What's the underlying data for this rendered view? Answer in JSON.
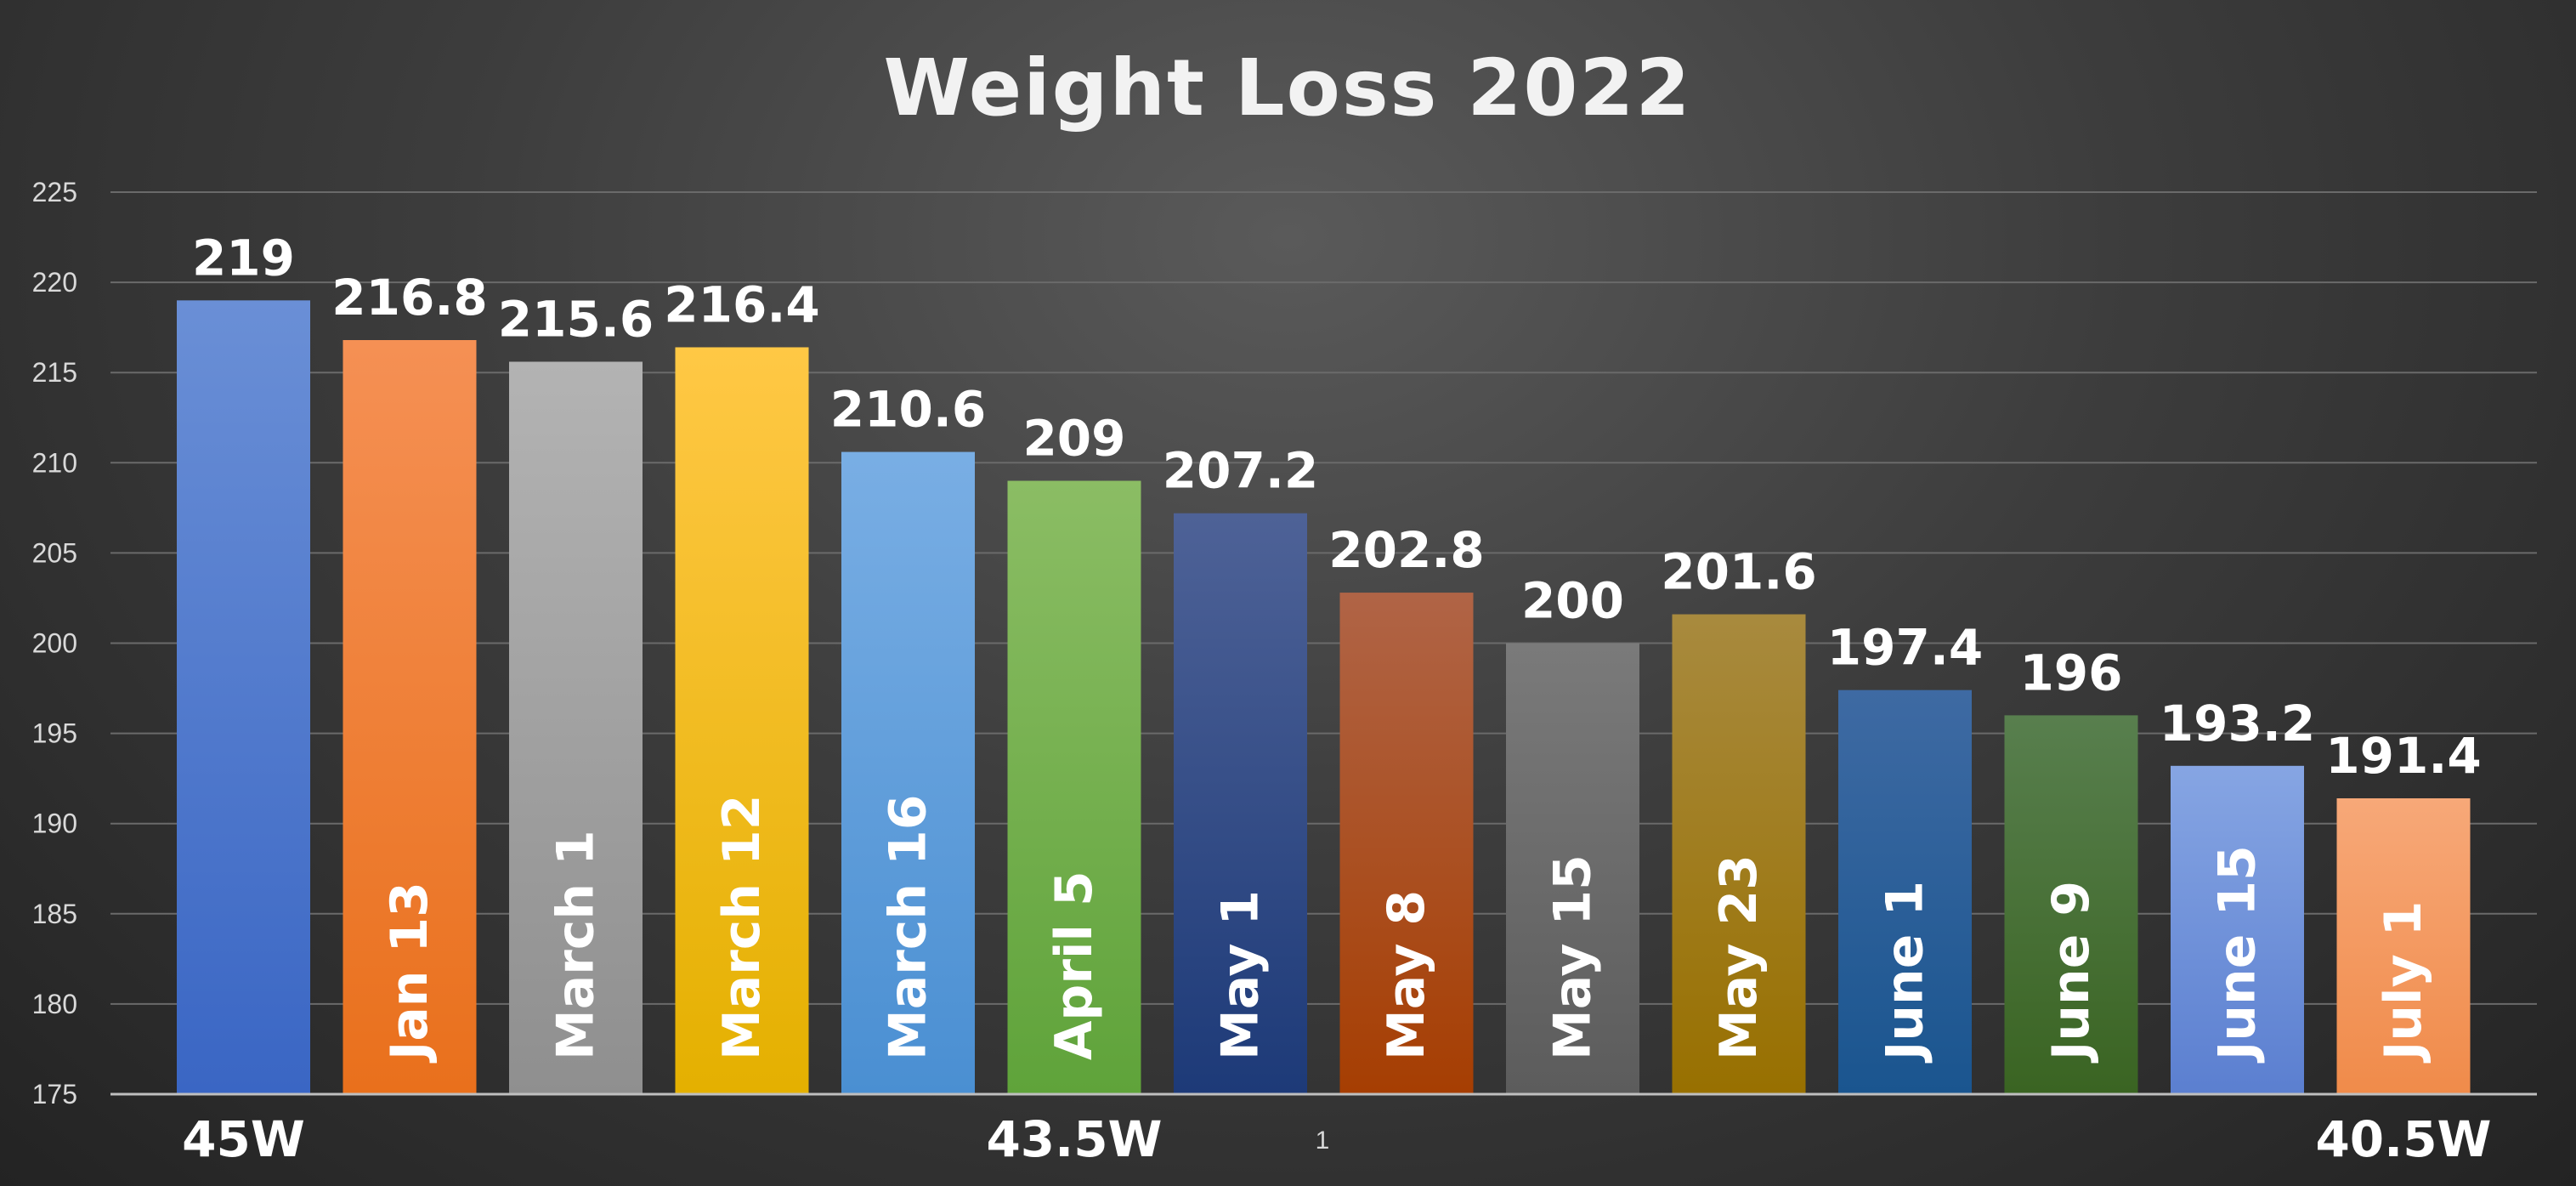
{
  "chart_data": {
    "type": "bar",
    "title": "Weight Loss 2022",
    "xlabel": "",
    "ylabel": "",
    "ylim": [
      175,
      225
    ],
    "yticks": [
      175,
      180,
      185,
      190,
      195,
      200,
      205,
      210,
      215,
      220,
      225
    ],
    "grid": true,
    "legend": "none",
    "categories": [
      "",
      "Jan 13",
      "March 1",
      "March 12",
      "March 16",
      "April 5",
      "May 1",
      "May 8",
      "May 15",
      "May 23",
      "June 1",
      "June 9",
      "June 15",
      "July 1"
    ],
    "values": [
      219,
      216.8,
      215.6,
      216.4,
      210.6,
      209,
      207.2,
      202.8,
      200,
      201.6,
      197.4,
      196,
      193.2,
      191.4
    ],
    "value_labels": [
      "219",
      "216.8",
      "215.6",
      "216.4",
      "210.6",
      "209",
      "207.2",
      "202.8",
      "200",
      "201.6",
      "197.4",
      "196",
      "193.2",
      "191.4"
    ],
    "colors": [
      [
        "#6a8fd6",
        "#3a66c4"
      ],
      [
        "#f59054",
        "#e9701c"
      ],
      [
        "#b3b3b3",
        "#8f8f8f"
      ],
      [
        "#ffc845",
        "#e4b000"
      ],
      [
        "#79aee4",
        "#4a8fd2"
      ],
      [
        "#8bbd64",
        "#5fa33a"
      ],
      [
        "#4e6297",
        "#1d3a78"
      ],
      [
        "#b06446",
        "#a63e02"
      ],
      [
        "#7a7a7a",
        "#5c5c5c"
      ],
      [
        "#a88a3e",
        "#987000"
      ],
      [
        "#3e6aa3",
        "#1a558f"
      ],
      [
        "#587f4e",
        "#3a6422"
      ],
      [
        "#86a5e3",
        "#5b7fd0"
      ],
      [
        "#f7a878",
        "#f08b4a"
      ]
    ],
    "bottom_annotations": [
      {
        "bar": 0,
        "text": "45W"
      },
      {
        "bar": 5,
        "text": "43.5W"
      },
      {
        "bar": 13,
        "text": "40.5W"
      }
    ],
    "page_number": "1"
  }
}
